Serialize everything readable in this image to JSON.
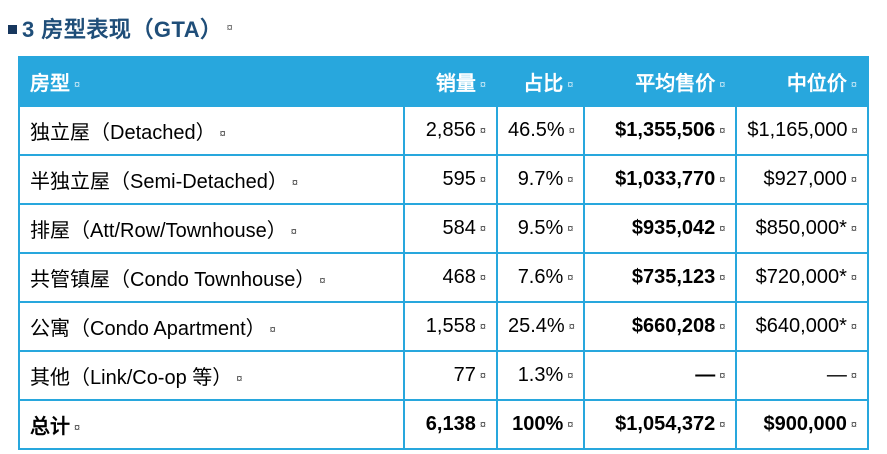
{
  "colors": {
    "accent": "#28A7DD",
    "title": "#1F4E79"
  },
  "marks": {
    "cell_end": "¤"
  },
  "page": {
    "title": "3 房型表现（GTA）"
  },
  "table": {
    "headers": [
      "房型",
      "销量",
      "占比",
      "平均售价",
      "中位价"
    ],
    "rows": [
      [
        "独立屋（Detached）",
        "2,856",
        "46.5%",
        "$1,355,506",
        "$1,165,000"
      ],
      [
        "半独立屋（Semi-Detached）",
        "595",
        "9.7%",
        "$1,033,770",
        "$927,000"
      ],
      [
        "排屋（Att/Row/Townhouse）",
        "584",
        "9.5%",
        "$935,042",
        "$850,000*"
      ],
      [
        "共管镇屋（Condo Townhouse）",
        "468",
        "7.6%",
        "$735,123",
        "$720,000*"
      ],
      [
        "公寓（Condo Apartment）",
        "1,558",
        "25.4%",
        "$660,208",
        "$640,000*"
      ],
      [
        "其他（Link/Co-op 等）",
        "77",
        "1.3%",
        "—",
        "—"
      ],
      [
        "总计",
        "6,138",
        "100%",
        "$1,054,372",
        "$900,000"
      ]
    ]
  }
}
